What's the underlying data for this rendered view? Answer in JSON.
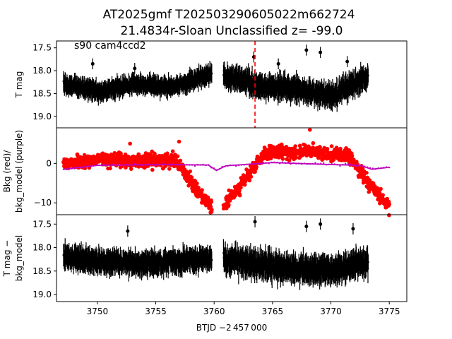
{
  "figure": {
    "title_line1": "AT2025gmf  T202503290605022m662724",
    "title_line2": "21.4834r-Sloan Unclassified z= -99.0",
    "annotation": "s90 cam4ccd2",
    "xlabel": "BTJD −2 457 000"
  },
  "chart_data": [
    {
      "type": "scatter",
      "panel": "top",
      "ylabel": "T mag",
      "xlim": [
        3746.5,
        3776.5
      ],
      "ylim": [
        19.25,
        17.35
      ],
      "yticks": [
        17.5,
        18.0,
        18.5,
        19.0
      ],
      "ytick_labels": [
        "17.5",
        "18.0",
        "18.5",
        "19.0"
      ],
      "marker_color": "#000000",
      "vline": {
        "x": 3763.5,
        "color": "#ff0000",
        "style": "dashed"
      },
      "segments": [
        {
          "x_start": 3747.1,
          "x_end": 3759.8,
          "center": [
            18.3,
            18.45,
            18.3,
            18.35,
            18.05
          ],
          "scatter": 0.2,
          "error": 0.18
        },
        {
          "x_start": 3760.8,
          "x_end": 3773.2,
          "center": [
            18.1,
            18.35,
            18.4,
            18.55,
            18.1
          ],
          "scatter": 0.25,
          "error": 0.22
        }
      ],
      "outliers": [
        [
          3749.6,
          17.85
        ],
        [
          3753.2,
          17.95
        ],
        [
          3763.4,
          17.7
        ],
        [
          3765.5,
          17.85
        ],
        [
          3767.9,
          17.55
        ],
        [
          3769.1,
          17.6
        ],
        [
          3771.4,
          17.8
        ]
      ]
    },
    {
      "type": "scatter",
      "panel": "middle",
      "ylabel_line1": "Bkg (red)/",
      "ylabel_line2": "bkg_model (purple)",
      "xlim": [
        3746.5,
        3776.5
      ],
      "ylim": [
        -13.0,
        9.0
      ],
      "yticks": [
        0,
        -10
      ],
      "ytick_labels": [
        "0",
        "−10"
      ],
      "series": [
        {
          "name": "Bkg",
          "color": "#ff0000",
          "segments": [
            {
              "x_start": 3747.1,
              "x_end": 3759.8,
              "center": [
                0.0,
                1.0,
                0.5,
                1.0,
                -11.5
              ],
              "spread": 3.0
            },
            {
              "x_start": 3760.8,
              "x_end": 3775.0,
              "center": [
                -11.0,
                2.5,
                3.0,
                2.0,
                -11.5
              ],
              "spread": 3.0
            }
          ],
          "outliers": [
            [
              3768.2,
              8.5
            ],
            [
              3757.0,
              5.5
            ],
            [
              3752.8,
              5.0
            ]
          ]
        },
        {
          "name": "bkg_model",
          "color": "#bf00bf",
          "points": [
            [
              3747.1,
              -1.5
            ],
            [
              3750.0,
              -0.5
            ],
            [
              3755.0,
              -0.3
            ],
            [
              3759.5,
              -0.4
            ],
            [
              3760.2,
              -1.8
            ],
            [
              3761.0,
              -0.6
            ],
            [
              3765.0,
              0.2
            ],
            [
              3770.0,
              -0.3
            ],
            [
              3772.5,
              -0.5
            ],
            [
              3773.5,
              -1.5
            ],
            [
              3775.0,
              -1.0
            ]
          ]
        }
      ]
    },
    {
      "type": "scatter",
      "panel": "bottom",
      "ylabel_line1": "T mag −",
      "ylabel_line2": "bkg_model",
      "xlim": [
        3746.5,
        3776.5
      ],
      "ylim": [
        19.15,
        17.3
      ],
      "yticks": [
        17.5,
        18.0,
        18.5,
        19.0
      ],
      "ytick_labels": [
        "17.5",
        "18.0",
        "18.5",
        "19.0"
      ],
      "xticks": [
        3750,
        3755,
        3760,
        3765,
        3770,
        3775
      ],
      "xtick_labels": [
        "3750",
        "3755",
        "3760",
        "3765",
        "3770",
        "3775"
      ],
      "marker_color": "#000000",
      "segments": [
        {
          "x_start": 3747.1,
          "x_end": 3759.8,
          "center": [
            18.2,
            18.3,
            18.35,
            18.3,
            18.25
          ],
          "scatter": 0.22,
          "error": 0.22
        },
        {
          "x_start": 3760.8,
          "x_end": 3773.2,
          "center": [
            18.25,
            18.35,
            18.45,
            18.5,
            18.3
          ],
          "scatter": 0.28,
          "error": 0.25
        }
      ],
      "outliers": [
        [
          3752.6,
          17.65
        ],
        [
          3763.5,
          17.45
        ],
        [
          3767.9,
          17.55
        ],
        [
          3769.1,
          17.5
        ],
        [
          3771.9,
          17.6
        ]
      ]
    }
  ]
}
